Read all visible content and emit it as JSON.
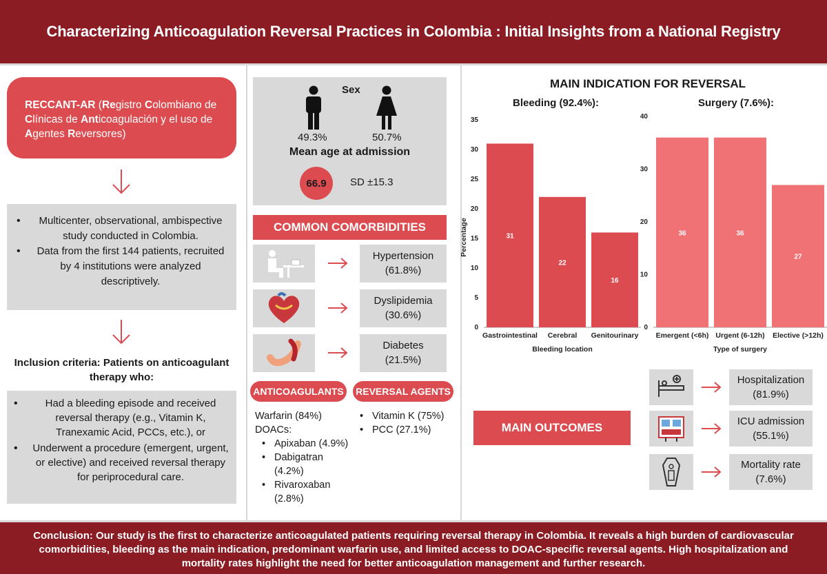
{
  "title": "Characterizing Anticoagulation Reversal Practices in Colombia : Initial Insights from a National Registry",
  "registry": {
    "segments": [
      {
        "t": "RECCANT-AR",
        "b": true
      },
      {
        "t": " (",
        "b": false
      },
      {
        "t": "Re",
        "b": true
      },
      {
        "t": "gistro ",
        "b": false
      },
      {
        "t": "C",
        "b": true
      },
      {
        "t": "olombiano de ",
        "b": false
      },
      {
        "t": "C",
        "b": true
      },
      {
        "t": "línicas de ",
        "b": false
      },
      {
        "t": "Ant",
        "b": true
      },
      {
        "t": "icoagulación y el uso de ",
        "b": false
      },
      {
        "t": "A",
        "b": true
      },
      {
        "t": "gentes ",
        "b": false
      },
      {
        "t": "R",
        "b": true
      },
      {
        "t": "eversores)",
        "b": false
      }
    ]
  },
  "design": [
    "Multicenter, observational, ambispective study conducted in Colombia.",
    "Data from the first 144 patients, recruited by 4 institutions were analyzed descriptively."
  ],
  "inclusion": {
    "title": "Inclusion criteria: Patients on anticoagulant therapy who:",
    "items": [
      "Had a bleeding episode and received reversal therapy (e.g., Vitamin K, Tranexamic Acid, PCCs, etc.), or",
      "Underwent a procedure (emergent, urgent, or elective) and received reversal therapy for periprocedural care."
    ]
  },
  "demographics": {
    "sex_label": "Sex",
    "male_pct": "49.3%",
    "female_pct": "50.7%",
    "age_label": "Mean age at admission",
    "age_mean": "66.9",
    "age_sd": "SD ±15.3"
  },
  "comorbidities": {
    "header": "COMMON COMORBIDITIES",
    "items": [
      {
        "name": "Hypertension",
        "pct": "(61.8%)",
        "icon": "blood-pressure-icon"
      },
      {
        "name": "Dyslipidemia",
        "pct": "(30.6%)",
        "icon": "heart-icon"
      },
      {
        "name": "Diabetes",
        "pct": "(21.5%)",
        "icon": "pancreas-icon"
      }
    ]
  },
  "anticoagulants": {
    "label": "ANTICOAGULANTS",
    "warfarin": "Warfarin (84%)",
    "doacs_label": "DOACs:",
    "doacs": [
      {
        "name": "Apixaban",
        "pct": "(4.9%)"
      },
      {
        "name": "Dabigatran",
        "pct": "(4.2%)"
      },
      {
        "name": "Rivaroxaban",
        "pct": "(2.8%)"
      }
    ]
  },
  "reversal": {
    "label": "REVERSAL AGENTS",
    "items": [
      "Vitamin K (75%)",
      "PCC  (27.1%)"
    ]
  },
  "indication_title": "MAIN INDICATION FOR REVERSAL",
  "chart_data": [
    {
      "type": "bar",
      "title": "Bleeding (92.4%):",
      "xlabel": "Bleeding location",
      "ylabel": "Percentage",
      "categories": [
        "Gastrointestinal",
        "Cerebral",
        "Genitourinary"
      ],
      "values": [
        31,
        22,
        16
      ],
      "ylim": [
        0,
        35
      ],
      "yticks": [
        0,
        5,
        10,
        15,
        20,
        25,
        30,
        35
      ],
      "color": "#db4b4f",
      "grid": false
    },
    {
      "type": "bar",
      "title": "Surgery (7.6%):",
      "xlabel": "Type of surgery",
      "ylabel": "",
      "categories": [
        "Emergent (<6h)",
        "Urgent (6-12h)",
        "Elective (>12h)"
      ],
      "values": [
        36,
        36,
        27
      ],
      "ylim": [
        0,
        40
      ],
      "yticks": [
        0,
        10,
        20,
        30,
        40
      ],
      "color": "#f07275",
      "grid": false
    }
  ],
  "outcomes": {
    "label": "MAIN OUTCOMES",
    "items": [
      {
        "name": "Hospitalization",
        "pct": "(81.9%)",
        "icon": "hospital-bed-icon"
      },
      {
        "name": "ICU admission",
        "pct": "(55.1%)",
        "icon": "icu-monitor-icon"
      },
      {
        "name": "Mortality rate",
        "pct": "(7.6%)",
        "icon": "coffin-icon"
      }
    ]
  },
  "conclusion": "Conclusion: Our study is the first to characterize anticoagulated patients requiring reversal therapy in Colombia. It reveals a high burden of cardiovascular comorbidities, bleeding as the main indication, predominant warfarin use, and limited access to DOAC-specific reversal agents. High hospitalization and mortality rates highlight the need for better anticoagulation management and further research.",
  "colors": {
    "banner": "#8b1c24",
    "accent": "#db4b4f",
    "surgery_bar": "#f07275",
    "panel": "#d9d9d9"
  }
}
